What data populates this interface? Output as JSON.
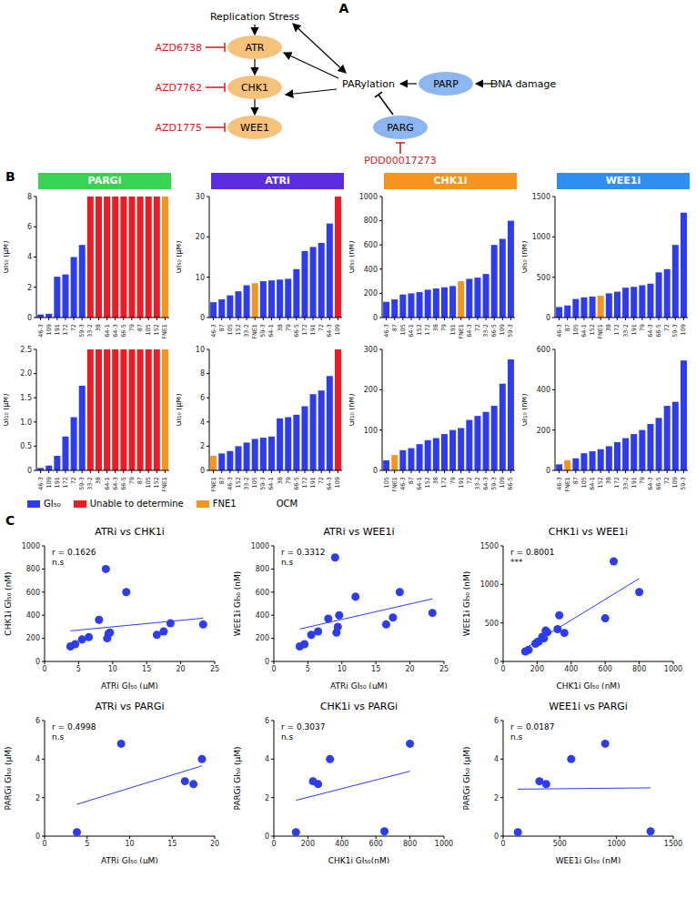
{
  "panel_labels": [
    "A",
    "B",
    "C"
  ],
  "diagram": {
    "replication_stress": "Replication Stress",
    "atr": "ATR",
    "chk1": "CHK1",
    "wee1": "WEE1",
    "parylation": "PARylation",
    "parp": "PARP",
    "parg": "PARG",
    "dna_damage": "DNA damage",
    "atr_inhibitor": "AZD6738",
    "chk1_inhibitor": "AZD7762",
    "wee1_inhibitor": "AZD1775",
    "parg_inhibitor": "PDD00017273",
    "kinase_color": "#f6c27a",
    "parp_color": "#8cb6ef",
    "inhibitor_color": "#d7191c"
  },
  "headers": [
    {
      "text": "PARGi",
      "color": "#39d353"
    },
    {
      "text": "ATRi",
      "color": "#5a2ee0"
    },
    {
      "text": "CHK1i",
      "color": "#f7941d"
    },
    {
      "text": "WEE1i",
      "color": "#2e8ff0"
    }
  ],
  "legend_items": [
    {
      "label": "GI₅₀",
      "color": "#2d3cf0"
    },
    {
      "label": "Unable to determine",
      "color": "#ed1c24"
    },
    {
      "label": "FNE1",
      "color": "#f7941d"
    }
  ],
  "legend_note": "OCM",
  "chart_data": [
    {
      "type": "bar",
      "ylabel": "GI₅₀ (μM)",
      "categories": [
        "46-3",
        "109",
        "191",
        "172",
        "72",
        "59-3",
        "33-2",
        "38",
        "64-1",
        "64-3",
        "66-5",
        "79",
        "87",
        "105",
        "152",
        "FNE1"
      ],
      "values": [
        0.2,
        0.25,
        2.7,
        2.85,
        4.0,
        4.8,
        null,
        null,
        null,
        null,
        null,
        null,
        null,
        null,
        null,
        null
      ],
      "unable_to_determine": [
        "33-2",
        "38",
        "64-1",
        "64-3",
        "66-5",
        "79",
        "87",
        "105",
        "152",
        "FNE1"
      ],
      "colors": [
        "#2d3cf0",
        "#2d3cf0",
        "#2d3cf0",
        "#2d3cf0",
        "#2d3cf0",
        "#2d3cf0",
        "#ed1c24",
        "#ed1c24",
        "#ed1c24",
        "#ed1c24",
        "#ed1c24",
        "#ed1c24",
        "#ed1c24",
        "#ed1c24",
        "#ed1c24",
        "#f7941d"
      ],
      "ylim": [
        0,
        8
      ],
      "yticks": [
        0,
        2,
        4,
        6,
        8
      ]
    },
    {
      "type": "bar",
      "ylabel": "GI₅₀ (μM)",
      "categories": [
        "46-3",
        "87",
        "105",
        "152",
        "33-2",
        "FNE1",
        "59-3",
        "64-1",
        "38",
        "79",
        "66-5",
        "172",
        "191",
        "72",
        "64-3",
        "109"
      ],
      "values": [
        3.8,
        4.5,
        5.5,
        6.5,
        8.0,
        8.5,
        9.0,
        9.2,
        9.4,
        9.6,
        12.0,
        16.5,
        17.5,
        18.5,
        23.3,
        null
      ],
      "unable_to_determine": [
        "109"
      ],
      "colors": [
        "#2d3cf0",
        "#2d3cf0",
        "#2d3cf0",
        "#2d3cf0",
        "#2d3cf0",
        "#f7941d",
        "#2d3cf0",
        "#2d3cf0",
        "#2d3cf0",
        "#2d3cf0",
        "#2d3cf0",
        "#2d3cf0",
        "#2d3cf0",
        "#2d3cf0",
        "#2d3cf0",
        "#ed1c24"
      ],
      "ylim": [
        0,
        30
      ],
      "yticks": [
        0,
        10,
        20,
        30
      ]
    },
    {
      "type": "bar",
      "ylabel": "GI₅₀ (nM)",
      "categories": [
        "46-3",
        "87",
        "105",
        "64-1",
        "152",
        "172",
        "38",
        "79",
        "191",
        "FNE1",
        "64-3",
        "72",
        "33-2",
        "66-5",
        "109",
        "59-3"
      ],
      "values": [
        130,
        150,
        190,
        200,
        210,
        230,
        240,
        250,
        260,
        300,
        320,
        330,
        360,
        600,
        650,
        800
      ],
      "unable_to_determine": [],
      "colors": [
        "#2d3cf0",
        "#2d3cf0",
        "#2d3cf0",
        "#2d3cf0",
        "#2d3cf0",
        "#2d3cf0",
        "#2d3cf0",
        "#2d3cf0",
        "#2d3cf0",
        "#f7941d",
        "#2d3cf0",
        "#2d3cf0",
        "#2d3cf0",
        "#2d3cf0",
        "#2d3cf0",
        "#2d3cf0"
      ],
      "ylim": [
        0,
        1000
      ],
      "yticks": [
        0,
        200,
        400,
        600,
        800,
        1000
      ]
    },
    {
      "type": "bar",
      "ylabel": "GI₅₀ (nM)",
      "categories": [
        "46-3",
        "87",
        "105",
        "64-1",
        "152",
        "FNE1",
        "38",
        "172",
        "33-2",
        "191",
        "79",
        "64-3",
        "66-5",
        "72",
        "59-3",
        "109"
      ],
      "values": [
        130,
        150,
        230,
        250,
        260,
        270,
        300,
        320,
        370,
        380,
        400,
        420,
        560,
        600,
        900,
        1300
      ],
      "unable_to_determine": [],
      "colors": [
        "#2d3cf0",
        "#2d3cf0",
        "#2d3cf0",
        "#2d3cf0",
        "#2d3cf0",
        "#f7941d",
        "#2d3cf0",
        "#2d3cf0",
        "#2d3cf0",
        "#2d3cf0",
        "#2d3cf0",
        "#2d3cf0",
        "#2d3cf0",
        "#2d3cf0",
        "#2d3cf0",
        "#2d3cf0"
      ],
      "ylim": [
        0,
        1500
      ],
      "yticks": [
        0,
        500,
        1000,
        1500
      ]
    },
    {
      "type": "bar",
      "ylabel": "GI₁₀ (μM)",
      "categories": [
        "46-3",
        "109",
        "191",
        "172",
        "72",
        "59-3",
        "33-2",
        "38",
        "64-1",
        "64-3",
        "66-5",
        "79",
        "87",
        "105",
        "152",
        "FNE1"
      ],
      "values": [
        0.05,
        0.1,
        0.3,
        0.7,
        1.1,
        1.75,
        null,
        null,
        null,
        null,
        null,
        null,
        null,
        null,
        null,
        null
      ],
      "unable_to_determine": [
        "33-2",
        "38",
        "64-1",
        "64-3",
        "66-5",
        "79",
        "87",
        "105",
        "152",
        "FNE1"
      ],
      "colors": [
        "#2d3cf0",
        "#2d3cf0",
        "#2d3cf0",
        "#2d3cf0",
        "#2d3cf0",
        "#2d3cf0",
        "#ed1c24",
        "#ed1c24",
        "#ed1c24",
        "#ed1c24",
        "#ed1c24",
        "#ed1c24",
        "#ed1c24",
        "#ed1c24",
        "#ed1c24",
        "#f7941d"
      ],
      "ylim": [
        0,
        2.5
      ],
      "yticks": [
        0,
        0.5,
        {
          "value": 1,
          "label": "1.0"
        },
        1.5,
        {
          "value": 2,
          "label": "2.0"
        },
        2.5
      ]
    },
    {
      "type": "bar",
      "ylabel": "GI₁₀ (μM)",
      "categories": [
        "FNE1",
        "87",
        "46-3",
        "152",
        "33-2",
        "105",
        "59-3",
        "64-1",
        "38",
        "79",
        "66-5",
        "172",
        "191",
        "72",
        "64-3",
        "109"
      ],
      "values": [
        1.2,
        1.4,
        1.6,
        2.0,
        2.3,
        2.6,
        2.7,
        2.8,
        4.3,
        4.4,
        4.6,
        5.3,
        6.3,
        6.6,
        7.8,
        null
      ],
      "unable_to_determine": [
        "109"
      ],
      "colors": [
        "#f7941d",
        "#2d3cf0",
        "#2d3cf0",
        "#2d3cf0",
        "#2d3cf0",
        "#2d3cf0",
        "#2d3cf0",
        "#2d3cf0",
        "#2d3cf0",
        "#2d3cf0",
        "#2d3cf0",
        "#2d3cf0",
        "#2d3cf0",
        "#2d3cf0",
        "#2d3cf0",
        "#ed1c24"
      ],
      "ylim": [
        0,
        10
      ],
      "yticks": [
        0,
        2,
        4,
        6,
        8,
        10
      ]
    },
    {
      "type": "bar",
      "ylabel": "GI₁₀ (nM)",
      "categories": [
        "105",
        "FNE1",
        "46-3",
        "87",
        "64-1",
        "152",
        "38",
        "172",
        "79",
        "191",
        "72",
        "33-2",
        "64-3",
        "59-3",
        "109",
        "66-5"
      ],
      "values": [
        25,
        38,
        50,
        55,
        65,
        75,
        80,
        90,
        100,
        105,
        125,
        135,
        145,
        160,
        215,
        275
      ],
      "unable_to_determine": [],
      "colors": [
        "#2d3cf0",
        "#f7941d",
        "#2d3cf0",
        "#2d3cf0",
        "#2d3cf0",
        "#2d3cf0",
        "#2d3cf0",
        "#2d3cf0",
        "#2d3cf0",
        "#2d3cf0",
        "#2d3cf0",
        "#2d3cf0",
        "#2d3cf0",
        "#2d3cf0",
        "#2d3cf0",
        "#2d3cf0"
      ],
      "ylim": [
        0,
        300
      ],
      "yticks": [
        0,
        100,
        200,
        300
      ]
    },
    {
      "type": "bar",
      "ylabel": "GI₁₀ (nM)",
      "categories": [
        "46-3",
        "FNE1",
        "87",
        "105",
        "64-1",
        "152",
        "38",
        "172",
        "33-2",
        "191",
        "79",
        "64-3",
        "66-5",
        "72",
        "109",
        "59-3"
      ],
      "values": [
        30,
        50,
        60,
        85,
        95,
        105,
        120,
        140,
        160,
        180,
        200,
        230,
        260,
        320,
        340,
        545
      ],
      "unable_to_determine": [],
      "colors": [
        "#2d3cf0",
        "#f7941d",
        "#2d3cf0",
        "#2d3cf0",
        "#2d3cf0",
        "#2d3cf0",
        "#2d3cf0",
        "#2d3cf0",
        "#2d3cf0",
        "#2d3cf0",
        "#2d3cf0",
        "#2d3cf0",
        "#2d3cf0",
        "#2d3cf0",
        "#2d3cf0",
        "#2d3cf0"
      ],
      "ylim": [
        0,
        600
      ],
      "yticks": [
        0,
        200,
        400,
        600
      ]
    },
    {
      "type": "scatter",
      "title": "ATRi vs CHK1i",
      "xlabel": "ATRi GI₅₀ (μM)",
      "ylabel": "CHK1i GI₅₀ (nM)",
      "x": [
        3.8,
        4.5,
        5.5,
        6.5,
        8.0,
        9.0,
        9.2,
        9.4,
        9.6,
        12.0,
        16.5,
        17.5,
        18.5,
        23.3
      ],
      "y": [
        130,
        150,
        190,
        210,
        360,
        800,
        200,
        240,
        250,
        600,
        230,
        260,
        330,
        320
      ],
      "color": "#2d3cf0",
      "annotation": "r = 0.1626",
      "significance": "n.s",
      "xlim": [
        0,
        25
      ],
      "xticks": [
        0,
        5,
        10,
        15,
        20,
        25
      ],
      "ylim": [
        0,
        1000
      ],
      "yticks": [
        0,
        200,
        400,
        600,
        800,
        1000
      ]
    },
    {
      "type": "scatter",
      "title": "ATRi vs WEE1i",
      "xlabel": "ATRi GI₅₀ (μM)",
      "ylabel": "WEE1i GI₅₀ (nM)",
      "x": [
        3.8,
        4.5,
        5.5,
        6.5,
        8.0,
        9.0,
        9.2,
        9.4,
        9.6,
        12.0,
        16.5,
        17.5,
        18.5,
        23.3
      ],
      "y": [
        130,
        150,
        230,
        260,
        370,
        900,
        250,
        300,
        400,
        560,
        320,
        380,
        600,
        420
      ],
      "color": "#2d3cf0",
      "annotation": "r = 0.3312",
      "significance": "n.s",
      "xlim": [
        0,
        25
      ],
      "xticks": [
        0,
        5,
        10,
        15,
        20,
        25
      ],
      "ylim": [
        0,
        1000
      ],
      "yticks": [
        0,
        200,
        400,
        600,
        800,
        1000
      ]
    },
    {
      "type": "scatter",
      "title": "CHK1i vs WEE1i",
      "xlabel": "CHK1i GI₅₀ (nM)",
      "ylabel": "WEE1i GI₅₀ (nM)",
      "x": [
        130,
        150,
        190,
        210,
        360,
        800,
        200,
        240,
        250,
        600,
        230,
        260,
        330,
        320,
        650
      ],
      "y": [
        130,
        150,
        230,
        260,
        370,
        900,
        250,
        300,
        400,
        560,
        320,
        380,
        600,
        420,
        1300
      ],
      "color": "#2d3cf0",
      "annotation": "r = 0.8001",
      "significance": "***",
      "xlim": [
        0,
        1000
      ],
      "xticks": [
        0,
        200,
        400,
        600,
        800,
        1000
      ],
      "ylim": [
        0,
        1500
      ],
      "yticks": [
        0,
        500,
        1000,
        1500
      ]
    },
    {
      "type": "scatter",
      "title": "ATRi vs PARGi",
      "xlabel": "ATRi GI₅₀ (μM)",
      "ylabel": "PARGi GI₅₀ (μM)",
      "x": [
        3.8,
        9.0,
        16.5,
        17.5,
        18.5
      ],
      "y": [
        0.2,
        4.8,
        2.85,
        2.7,
        4.0
      ],
      "color": "#2d3cf0",
      "annotation": "r = 0.4998",
      "significance": "n.s",
      "xlim": [
        0,
        20
      ],
      "xticks": [
        0,
        5,
        10,
        15,
        20
      ],
      "ylim": [
        0,
        6
      ],
      "yticks": [
        0,
        2,
        4,
        6
      ]
    },
    {
      "type": "scatter",
      "title": "CHK1i vs PARGi",
      "xlabel": "CHK1i GI₅₀(nM)",
      "ylabel": "PARGi GI₅₀ (μM)",
      "x": [
        130,
        800,
        230,
        260,
        330,
        650
      ],
      "y": [
        0.2,
        4.8,
        2.85,
        2.7,
        4.0,
        0.25
      ],
      "color": "#2d3cf0",
      "annotation": "r = 0.3037",
      "significance": "n.s",
      "xlim": [
        0,
        1000
      ],
      "xticks": [
        0,
        200,
        400,
        600,
        800,
        1000
      ],
      "ylim": [
        0,
        6
      ],
      "yticks": [
        0,
        2,
        4,
        6
      ]
    },
    {
      "type": "scatter",
      "title": "WEE1i vs PARGi",
      "xlabel": "WEE1i GI₅₀ (nM)",
      "ylabel": "PARGi GI₅₀ (μM)",
      "x": [
        130,
        900,
        320,
        380,
        600,
        1300
      ],
      "y": [
        0.2,
        4.8,
        2.85,
        2.7,
        4.0,
        0.25
      ],
      "color": "#2d3cf0",
      "annotation": "r = 0.0187",
      "significance": "n.s",
      "xlim": [
        0,
        1500
      ],
      "xticks": [
        0,
        500,
        1000,
        1500
      ],
      "ylim": [
        0,
        6
      ],
      "yticks": [
        0,
        2,
        4,
        6
      ]
    }
  ]
}
